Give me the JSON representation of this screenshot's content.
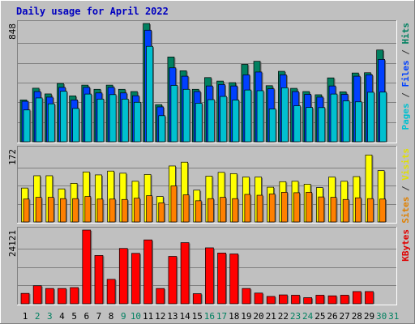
{
  "chart_data": {
    "type": "bar",
    "title": "Daily usage for April 2022",
    "days": [
      "1",
      "2",
      "3",
      "4",
      "5",
      "6",
      "7",
      "8",
      "9",
      "10",
      "11",
      "12",
      "13",
      "14",
      "15",
      "16",
      "17",
      "18",
      "19",
      "20",
      "21",
      "22",
      "23",
      "24",
      "25",
      "26",
      "27",
      "28",
      "29",
      "30",
      "31"
    ],
    "weekend_days": [
      "2",
      "3",
      "9",
      "10",
      "16",
      "17",
      "23",
      "24",
      "30",
      "31"
    ],
    "panels": [
      {
        "id": "hits",
        "max_label": "848",
        "ylim": [
          0,
          848
        ],
        "axis_labels": [
          {
            "text": "Pages",
            "color": "#00c0d0"
          },
          {
            "text": " / ",
            "color": "#333333"
          },
          {
            "text": "Files",
            "color": "#0040ff"
          },
          {
            "text": " / ",
            "color": "#333333"
          },
          {
            "text": "Hits",
            "color": "#008060"
          }
        ],
        "series": [
          {
            "name": "Hits",
            "color": "#008060",
            "values": [
              300,
              384,
              343,
              418,
              329,
              406,
              376,
              406,
              376,
              360,
              848,
              266,
              608,
              509,
              376,
              460,
              435,
              424,
              555,
              577,
              402,
              505,
              383,
              360,
              337,
              458,
              358,
              493,
              495,
              658,
              0
            ]
          },
          {
            "name": "Files",
            "color": "#0040ff",
            "values": [
              290,
              360,
              320,
              390,
              300,
              390,
              350,
              390,
              350,
              330,
              800,
              250,
              530,
              470,
              360,
              400,
              410,
              400,
              480,
              500,
              380,
              480,
              360,
              340,
              320,
              400,
              340,
              470,
              480,
              590,
              0
            ]
          },
          {
            "name": "Pages",
            "color": "#00c0d0",
            "values": [
              228,
              314,
              272,
              362,
              239,
              342,
              306,
              338,
              306,
              283,
              684,
              187,
              404,
              376,
              276,
              302,
              325,
              299,
              371,
              366,
              235,
              387,
              258,
              246,
              245,
              342,
              293,
              286,
              355,
              356,
              0
            ]
          }
        ]
      },
      {
        "id": "visits",
        "max_label": "172",
        "ylim": [
          0,
          172
        ],
        "axis_labels": [
          {
            "text": "Sites",
            "color": "#e08000"
          },
          {
            "text": " / ",
            "color": "#333333"
          },
          {
            "text": "Visits",
            "color": "#e0e000"
          }
        ],
        "series": [
          {
            "name": "Visits",
            "color": "#ffff00",
            "values": [
              80,
              109,
              109,
              78,
              91,
              118,
              111,
              120,
              115,
              96,
              112,
              60,
              132,
              141,
              75,
              108,
              117,
              114,
              106,
              106,
              82,
              95,
              96,
              89,
              81,
              106,
              96,
              107,
              158,
              121,
              0
            ]
          },
          {
            "name": "Sites",
            "color": "#ff8000",
            "values": [
              54,
              58,
              58,
              55,
              55,
              60,
              54,
              54,
              53,
              56,
              62,
              45,
              85,
              64,
              50,
              55,
              58,
              55,
              65,
              63,
              66,
              70,
              69,
              70,
              59,
              58,
              53,
              57,
              55,
              54,
              0
            ]
          }
        ]
      },
      {
        "id": "kbytes",
        "max_label": "24121",
        "ylim": [
          0,
          24121
        ],
        "axis_labels": [
          {
            "text": "KBytes",
            "color": "#e00000"
          }
        ],
        "series": [
          {
            "name": "KBytes",
            "color": "#ff0000",
            "values": [
              3400,
              5900,
              5000,
              5000,
              5300,
              24121,
              15800,
              8000,
              18100,
              16500,
              20900,
              5000,
              15500,
              20000,
              3300,
              18300,
              16600,
              16300,
              5000,
              3500,
              2400,
              2900,
              2800,
              2000,
              2800,
              2600,
              2800,
              4000,
              4000,
              0,
              0
            ]
          }
        ]
      }
    ]
  }
}
